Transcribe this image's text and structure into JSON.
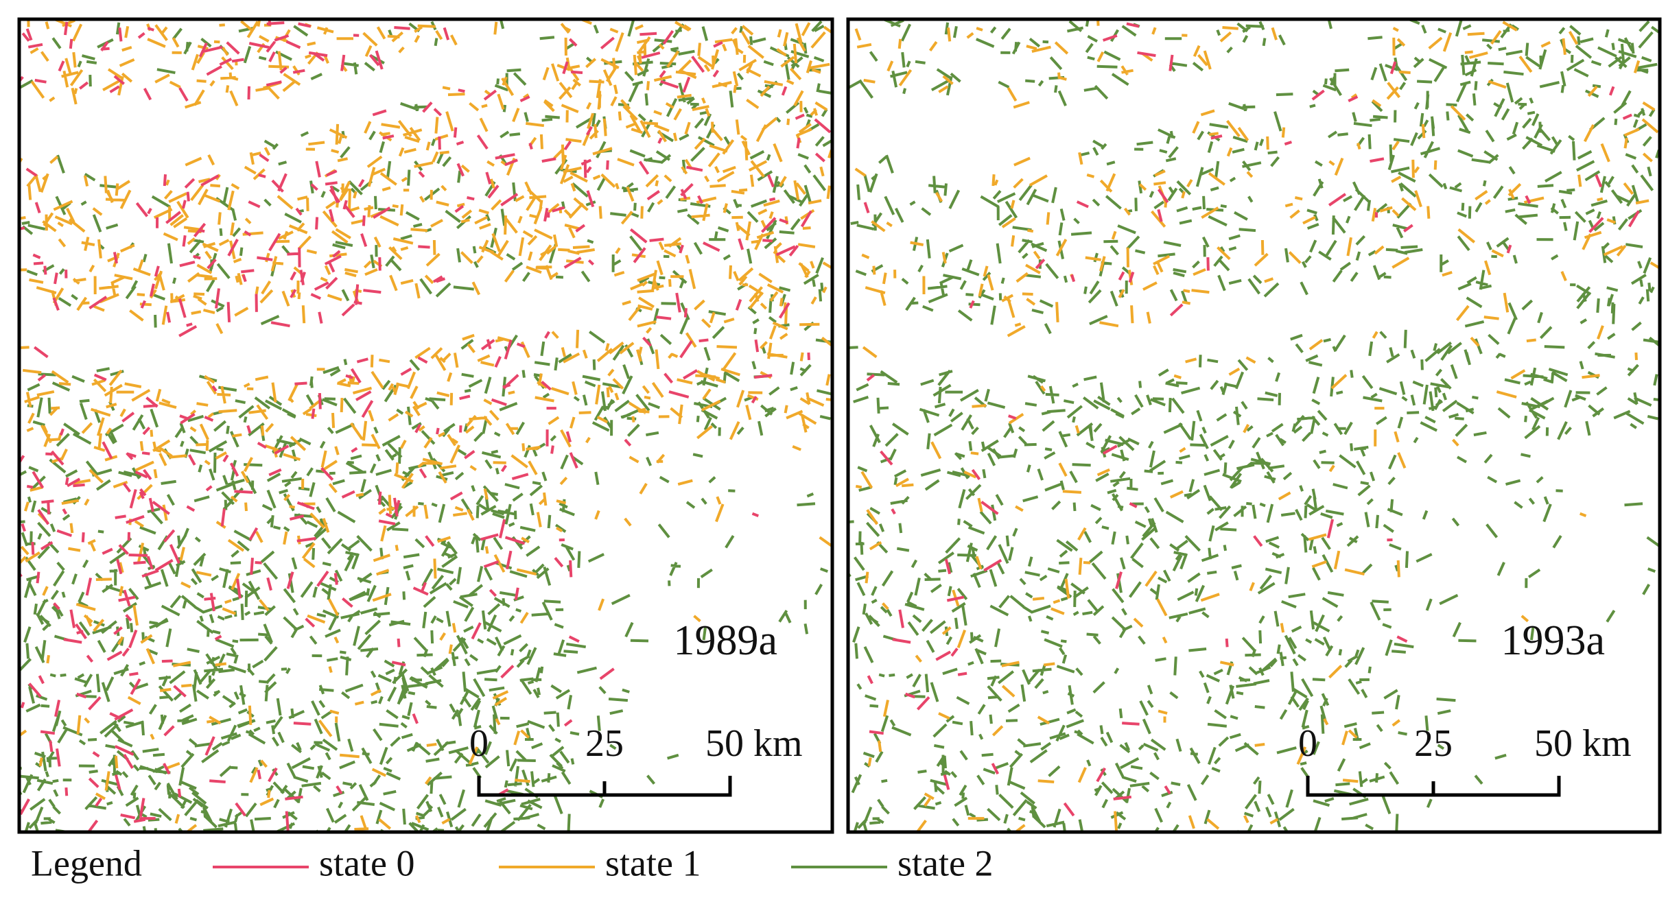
{
  "panels": [
    {
      "label": "1989a",
      "scale_bar": [
        "0",
        "25",
        "50 km"
      ]
    },
    {
      "label": "1993a",
      "scale_bar": [
        "0",
        "25",
        "50 km"
      ]
    }
  ],
  "legend": {
    "title": "Legend",
    "items": [
      {
        "name": "state 0",
        "color": "#e8446a"
      },
      {
        "name": "state 1",
        "color": "#f0a92a"
      },
      {
        "name": "state 2",
        "color": "#5f9040"
      }
    ]
  }
}
